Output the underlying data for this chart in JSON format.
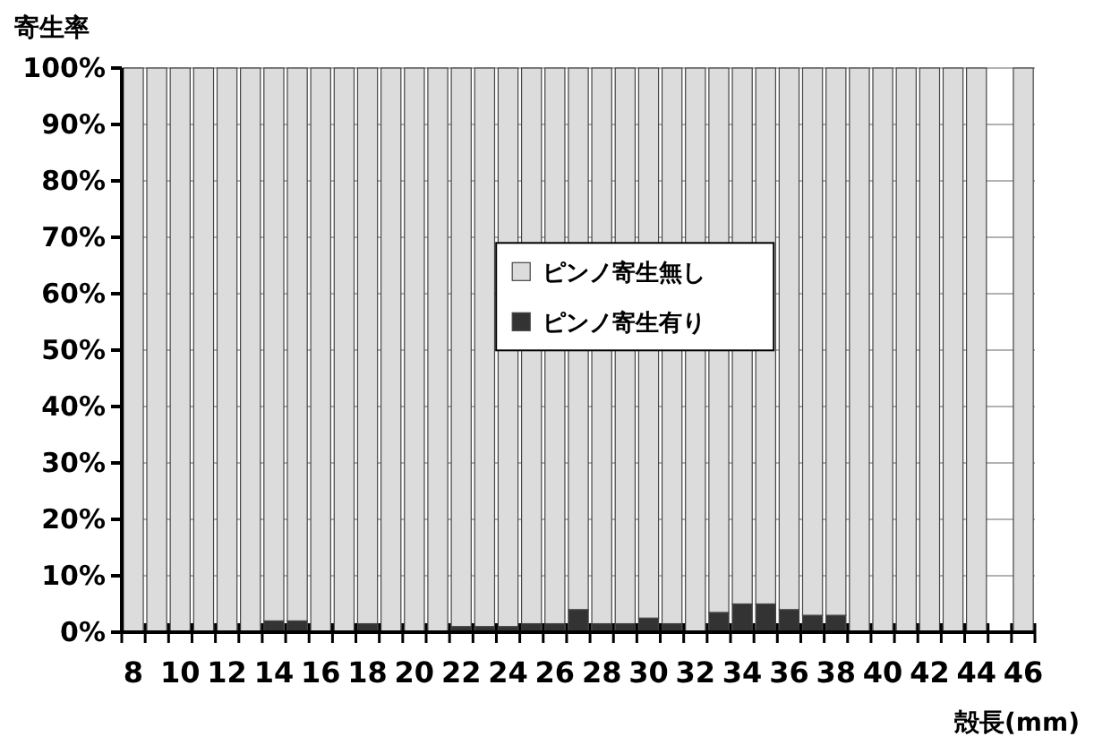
{
  "chart_data": {
    "type": "bar",
    "stacked": true,
    "ylabel": "寄生率",
    "xlabel": "殻長(mm)",
    "categories": [
      "8",
      null,
      "10",
      null,
      "12",
      null,
      "14",
      null,
      "16",
      null,
      "18",
      null,
      "20",
      null,
      "22",
      null,
      "24",
      null,
      "26",
      null,
      "28",
      null,
      "30",
      null,
      "32",
      null,
      "34",
      null,
      "36",
      null,
      "38",
      null,
      "40",
      null,
      "42",
      null,
      "44",
      null,
      "46"
    ],
    "series": [
      {
        "name": "ピンノ寄生有り",
        "color": "#333333",
        "values": [
          0,
          0,
          0,
          0,
          0,
          0,
          2,
          2,
          0,
          0,
          1.5,
          0,
          0,
          0,
          1,
          1,
          1,
          1.5,
          1.5,
          4,
          1.5,
          1.5,
          2.5,
          1.5,
          0,
          3.5,
          5,
          5,
          4,
          3,
          3,
          0,
          0,
          0,
          0,
          0,
          0,
          null,
          0
        ]
      },
      {
        "name": "ピンノ寄生無し",
        "color": "#dcdcdc",
        "values": [
          100,
          100,
          100,
          100,
          100,
          100,
          98,
          98,
          100,
          100,
          98.5,
          100,
          100,
          100,
          99,
          99,
          99,
          98.5,
          98.5,
          96,
          98.5,
          98.5,
          97.5,
          98.5,
          100,
          96.5,
          95,
          95,
          96,
          97,
          97,
          100,
          100,
          100,
          100,
          100,
          100,
          null,
          100
        ]
      }
    ],
    "ylim": [
      0,
      100
    ],
    "yticks": [
      {
        "value": 0,
        "label": "0%"
      },
      {
        "value": 10,
        "label": "10%"
      },
      {
        "value": 20,
        "label": "20%"
      },
      {
        "value": 30,
        "label": "30%"
      },
      {
        "value": 40,
        "label": "40%"
      },
      {
        "value": 50,
        "label": "50%"
      },
      {
        "value": 60,
        "label": "60%"
      },
      {
        "value": 70,
        "label": "70%"
      },
      {
        "value": 80,
        "label": "80%"
      },
      {
        "value": 90,
        "label": "90%"
      },
      {
        "value": 100,
        "label": "100%"
      }
    ],
    "grid": "y",
    "legend": "center"
  }
}
